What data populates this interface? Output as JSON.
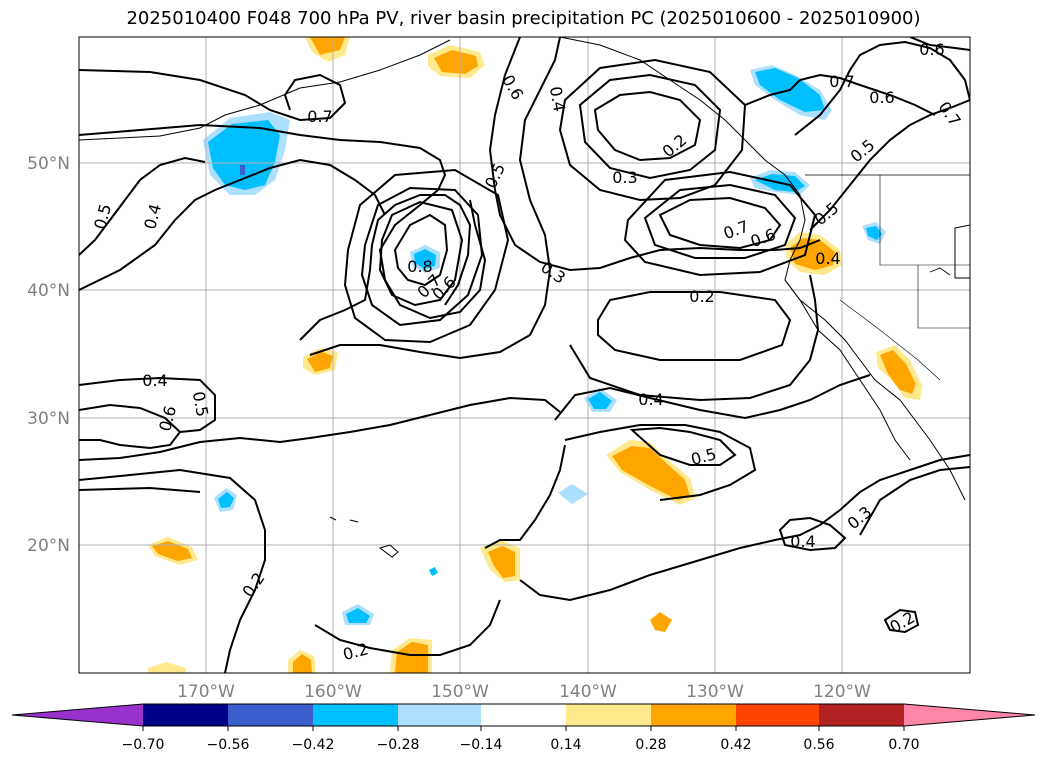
{
  "title": "2025010400 F048 700 hPa PV, river basin precipitation PC (2025010600 - 2025010900)",
  "map": {
    "lat_ticks": [
      "50°N",
      "40°N",
      "30°N",
      "20°N"
    ],
    "lon_ticks": [
      "170°W",
      "160°W",
      "150°W",
      "140°W",
      "130°W",
      "120°W"
    ],
    "contour_labels": [
      {
        "text": "0.7"
      },
      {
        "text": "0.6"
      },
      {
        "text": "0.4"
      },
      {
        "text": "0.2"
      },
      {
        "text": "0.3"
      },
      {
        "text": "0.7"
      },
      {
        "text": "0.6"
      },
      {
        "text": "0.5"
      },
      {
        "text": "0.5"
      },
      {
        "text": "0.7"
      },
      {
        "text": "0.6"
      },
      {
        "text": "0.5"
      },
      {
        "text": "0.4"
      },
      {
        "text": "0.8"
      },
      {
        "text": "0.7"
      },
      {
        "text": "0.6"
      },
      {
        "text": "0.3"
      },
      {
        "text": "0.7"
      },
      {
        "text": "0.6"
      },
      {
        "text": "0.5"
      },
      {
        "text": "0.4"
      },
      {
        "text": "0.2"
      },
      {
        "text": "0.4"
      },
      {
        "text": "0.5"
      },
      {
        "text": "0.6"
      },
      {
        "text": "0.4"
      },
      {
        "text": "0.5"
      },
      {
        "text": "0.4"
      },
      {
        "text": "0.3"
      },
      {
        "text": "0.2"
      },
      {
        "text": "0.2"
      },
      {
        "text": "0.2"
      },
      {
        "text": "0.6"
      },
      {
        "text": "0.7"
      }
    ]
  },
  "colorbar": {
    "ticks": [
      "−0.70",
      "−0.56",
      "−0.42",
      "−0.28",
      "−0.14",
      "0.14",
      "0.28",
      "0.42",
      "0.56",
      "0.70"
    ],
    "colors": [
      "#9932CC",
      "#00008B",
      "#3A5FCD",
      "#00BFFF",
      "#ADDFFF",
      "#FFFFFF",
      "#FFE98C",
      "#FFA500",
      "#FF4500",
      "#B22222",
      "#FF85A8"
    ]
  }
}
